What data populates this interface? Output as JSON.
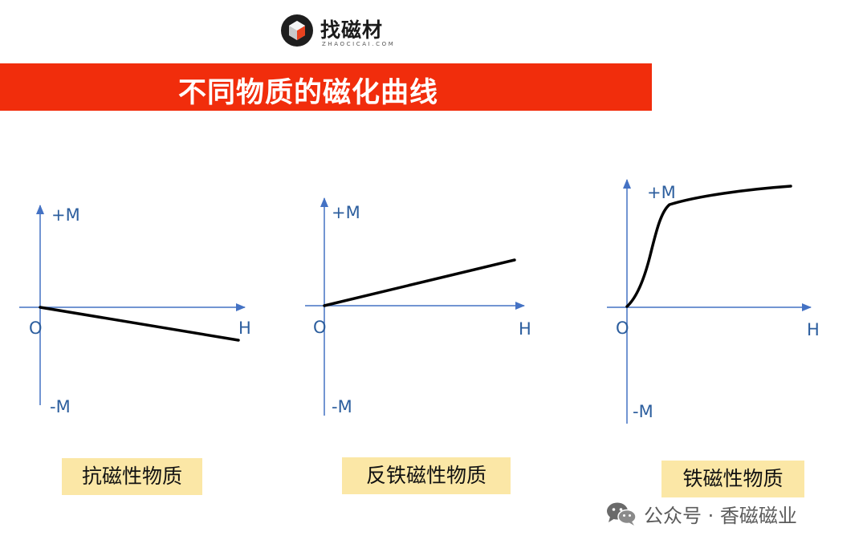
{
  "logo": {
    "name": "找磁材",
    "subtitle": "ZHAOCICAI.COM"
  },
  "title": "不同物质的磁化曲线",
  "diagrams": [
    {
      "id": "diamagnetic",
      "caption": "抗磁性物质",
      "plus_m": "+M",
      "minus_m": "-M",
      "origin": "O",
      "h": "H",
      "curve": "linear-negative"
    },
    {
      "id": "antiferromagnetic",
      "caption": "反铁磁性物质",
      "plus_m": "+M",
      "minus_m": "-M",
      "origin": "O",
      "h": "H",
      "curve": "linear-positive"
    },
    {
      "id": "ferromagnetic",
      "caption": "铁磁性物质",
      "plus_m": "+M",
      "minus_m": "-M",
      "origin": "O",
      "h": "H",
      "curve": "saturation"
    }
  ],
  "colors": {
    "title_bar": "#f12d0c",
    "axis": "#4472c4",
    "curve": "#000000",
    "caption_bg": "#fbe7a6"
  },
  "watermark": {
    "icon": "wechat-icon",
    "text": "公众号 · 香磁磁业"
  }
}
